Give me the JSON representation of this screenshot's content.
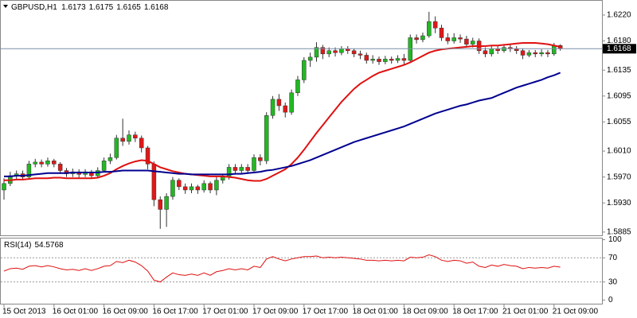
{
  "chart_data": [
    {
      "type": "candlestick",
      "title": "GBPUSD,H1",
      "categories": [
        "15 Oct 2013",
        null,
        null,
        null,
        null,
        null,
        null,
        null,
        "16 Oct 01:00",
        null,
        null,
        null,
        null,
        null,
        null,
        null,
        "16 Oct 09:00",
        null,
        null,
        null,
        null,
        null,
        null,
        null,
        "16 Oct 17:00",
        null,
        null,
        null,
        null,
        null,
        null,
        null,
        "17 Oct 01:00",
        null,
        null,
        null,
        null,
        null,
        null,
        null,
        "17 Oct 09:00",
        null,
        null,
        null,
        null,
        null,
        null,
        null,
        "17 Oct 17:00",
        null,
        null,
        null,
        null,
        null,
        null,
        null,
        "18 Oct 01:00",
        null,
        null,
        null,
        null,
        null,
        null,
        null,
        "18 Oct 09:00",
        null,
        null,
        null,
        null,
        null,
        null,
        null,
        "18 Oct 17:00",
        null,
        null,
        null,
        null,
        null,
        null,
        null,
        "21 Oct 01:00",
        null,
        null,
        null,
        null,
        null,
        null,
        null,
        "21 Oct 09:00",
        null
      ],
      "open": [
        1.595,
        1.596,
        1.5972,
        1.5975,
        1.597,
        1.599,
        1.5993,
        1.599,
        1.5995,
        1.599,
        1.598,
        1.5975,
        1.5978,
        1.5974,
        1.5978,
        1.5972,
        1.598,
        1.5995,
        1.6,
        1.603,
        1.6025,
        1.6035,
        1.603,
        1.6015,
        1.599,
        1.5935,
        1.592,
        1.594,
        1.5965,
        1.5955,
        1.595,
        1.5955,
        1.595,
        1.596,
        1.595,
        1.5965,
        1.597,
        1.5985,
        1.598,
        1.5985,
        1.598,
        1.6,
        1.5995,
        1.6065,
        1.609,
        1.608,
        1.607,
        1.61,
        1.612,
        1.615,
        1.6155,
        1.617,
        1.616,
        1.6165,
        1.6162,
        1.6168,
        1.6165,
        1.616,
        1.6158,
        1.615,
        1.6152,
        1.6148,
        1.6152,
        1.615,
        1.6153,
        1.615,
        1.6185,
        1.6182,
        1.6188,
        1.621,
        1.62,
        1.6185,
        1.618,
        1.6185,
        1.6183,
        1.6175,
        1.618,
        1.6165,
        1.616,
        1.6168,
        1.6165,
        1.617,
        1.6168,
        1.6165,
        1.6158,
        1.6162,
        1.616,
        1.6162,
        1.616,
        1.6173
      ],
      "high": [
        1.5968,
        1.5978,
        1.598,
        1.598,
        1.5995,
        1.5998,
        1.5997,
        1.6,
        1.5998,
        1.5993,
        1.5984,
        1.5983,
        1.5982,
        1.5982,
        1.5981,
        1.5985,
        1.6,
        1.6006,
        1.6035,
        1.606,
        1.6042,
        1.604,
        1.6034,
        1.6018,
        1.5994,
        1.594,
        1.5945,
        1.597,
        1.5968,
        1.596,
        1.596,
        1.5958,
        1.5965,
        1.5963,
        1.597,
        1.5975,
        1.599,
        1.599,
        1.599,
        1.599,
        1.6005,
        1.6005,
        1.607,
        1.6095,
        1.6098,
        1.6085,
        1.6105,
        1.6126,
        1.6155,
        1.6162,
        1.6178,
        1.6174,
        1.617,
        1.617,
        1.6172,
        1.6172,
        1.6168,
        1.6165,
        1.6162,
        1.6158,
        1.6156,
        1.6157,
        1.6156,
        1.6158,
        1.616,
        1.619,
        1.619,
        1.6193,
        1.6225,
        1.6218,
        1.6205,
        1.6192,
        1.6192,
        1.619,
        1.6188,
        1.6185,
        1.6184,
        1.617,
        1.6173,
        1.6172,
        1.6175,
        1.6174,
        1.6172,
        1.6168,
        1.6166,
        1.6166,
        1.6167,
        1.6166,
        1.6177,
        1.6175
      ],
      "low": [
        1.5935,
        1.5956,
        1.5966,
        1.5965,
        1.5967,
        1.5985,
        1.5985,
        1.5986,
        1.5985,
        1.5975,
        1.597,
        1.597,
        1.5969,
        1.597,
        1.5967,
        1.5968,
        1.5977,
        1.599,
        1.5997,
        1.6018,
        1.602,
        1.6024,
        1.6008,
        1.5982,
        1.5925,
        1.589,
        1.5893,
        1.5935,
        1.595,
        1.5944,
        1.5945,
        1.5944,
        1.5946,
        1.5945,
        1.5942,
        1.596,
        1.5966,
        1.5975,
        1.5976,
        1.5975,
        1.5977,
        1.5988,
        1.599,
        1.606,
        1.6072,
        1.6062,
        1.6066,
        1.6095,
        1.6115,
        1.614,
        1.6148,
        1.6152,
        1.6155,
        1.6156,
        1.6158,
        1.616,
        1.6155,
        1.6152,
        1.6145,
        1.6145,
        1.6143,
        1.6144,
        1.6145,
        1.6146,
        1.6144,
        1.6148,
        1.6176,
        1.6178,
        1.6185,
        1.6192,
        1.618,
        1.6175,
        1.6176,
        1.6177,
        1.617,
        1.617,
        1.616,
        1.6155,
        1.6156,
        1.616,
        1.6162,
        1.6163,
        1.616,
        1.6152,
        1.6155,
        1.6155,
        1.6156,
        1.6155,
        1.6157,
        1.6165
      ],
      "close": [
        1.596,
        1.5972,
        1.5975,
        1.597,
        1.599,
        1.5993,
        1.599,
        1.5995,
        1.599,
        1.598,
        1.5975,
        1.5978,
        1.5974,
        1.5978,
        1.5972,
        1.598,
        1.5995,
        1.6,
        1.603,
        1.6025,
        1.6035,
        1.603,
        1.6015,
        1.599,
        1.5935,
        1.592,
        1.594,
        1.5965,
        1.5955,
        1.595,
        1.5955,
        1.595,
        1.596,
        1.595,
        1.5965,
        1.597,
        1.5985,
        1.598,
        1.5985,
        1.598,
        1.6,
        1.5995,
        1.6065,
        1.609,
        1.608,
        1.607,
        1.61,
        1.612,
        1.615,
        1.6155,
        1.617,
        1.616,
        1.6165,
        1.6162,
        1.6168,
        1.6165,
        1.616,
        1.6158,
        1.615,
        1.6152,
        1.6148,
        1.6152,
        1.615,
        1.6153,
        1.615,
        1.6185,
        1.6182,
        1.6188,
        1.621,
        1.62,
        1.6185,
        1.618,
        1.6185,
        1.6183,
        1.6175,
        1.618,
        1.6165,
        1.616,
        1.6168,
        1.6165,
        1.617,
        1.6168,
        1.6165,
        1.6158,
        1.6162,
        1.616,
        1.6162,
        1.616,
        1.6173,
        1.6168
      ],
      "up_color": "#22b822",
      "down_color": "#e01818",
      "series": [
        {
          "color": "#e01010",
          "values": [
            1.5965,
            1.5965,
            1.5966,
            1.5966,
            1.5967,
            1.5968,
            1.5968,
            1.5968,
            1.5969,
            1.5969,
            1.5968,
            1.5968,
            1.5968,
            1.5968,
            1.5968,
            1.5969,
            1.5972,
            1.5976,
            1.5982,
            1.5987,
            1.5991,
            1.5994,
            1.5996,
            1.5995,
            1.599,
            1.5985,
            1.5982,
            1.5979,
            1.5977,
            1.5975,
            1.5974,
            1.5973,
            1.5972,
            1.5971,
            1.5971,
            1.5971,
            1.597,
            1.5969,
            1.5967,
            1.5965,
            1.5964,
            1.5964,
            1.5967,
            1.5972,
            1.5977,
            1.5982,
            1.599,
            1.6,
            1.6012,
            1.6025,
            1.6038,
            1.605,
            1.6062,
            1.6074,
            1.6086,
            1.6096,
            1.6106,
            1.6114,
            1.612,
            1.6126,
            1.6131,
            1.6134,
            1.6137,
            1.614,
            1.6143,
            1.6147,
            1.6152,
            1.6157,
            1.6162,
            1.6165,
            1.6167,
            1.6168,
            1.6169,
            1.617,
            1.6171,
            1.6172,
            1.6172,
            1.6172,
            1.6173,
            1.6173,
            1.6174,
            1.6175,
            1.6176,
            1.6177,
            1.6177,
            1.6177,
            1.6176,
            1.6175,
            1.6173,
            1.6171
          ]
        },
        {
          "color": "#000090",
          "values": [
            1.5971,
            1.5971,
            1.5972,
            1.5972,
            1.5973,
            1.5974,
            1.5975,
            1.5976,
            1.5976,
            1.5976,
            1.5976,
            1.5977,
            1.5977,
            1.5977,
            1.5977,
            1.5977,
            1.5978,
            1.5978,
            1.5979,
            1.598,
            1.598,
            1.598,
            1.598,
            1.598,
            1.5979,
            1.5978,
            1.5977,
            1.5976,
            1.5975,
            1.5975,
            1.5974,
            1.5974,
            1.5974,
            1.5974,
            1.5974,
            1.5974,
            1.5974,
            1.5975,
            1.5975,
            1.5976,
            1.5977,
            1.5978,
            1.598,
            1.5981,
            1.5983,
            1.5985,
            1.5987,
            1.599,
            1.5993,
            1.5996,
            1.6,
            1.6004,
            1.6008,
            1.6012,
            1.6016,
            1.602,
            1.6024,
            1.6027,
            1.603,
            1.6033,
            1.6036,
            1.6039,
            1.6042,
            1.6045,
            1.6048,
            1.6052,
            1.6056,
            1.606,
            1.6064,
            1.6068,
            1.6071,
            1.6074,
            1.6077,
            1.608,
            1.6082,
            1.6085,
            1.6088,
            1.609,
            1.6092,
            1.6096,
            1.61,
            1.6104,
            1.6108,
            1.6111,
            1.6114,
            1.6117,
            1.612,
            1.6124,
            1.6127,
            1.6131
          ]
        }
      ],
      "ylim": [
        1.588,
        1.6242
      ],
      "yticks": [
        {
          "value": 1.622,
          "label": "1.6220"
        },
        {
          "value": 1.618,
          "label": "1.6180"
        },
        {
          "value": 1.6135,
          "label": "1.6135"
        },
        {
          "value": 1.6095,
          "label": "1.6095"
        },
        {
          "value": 1.6055,
          "label": "1.6055"
        },
        {
          "value": 1.601,
          "label": "1.6010"
        },
        {
          "value": 1.597,
          "label": "1.5970"
        },
        {
          "value": 1.593,
          "label": "1.5930"
        },
        {
          "value": 1.5885,
          "label": "1.5885"
        }
      ],
      "grid": false
    },
    {
      "type": "line",
      "title": "RSI(14)",
      "series": [
        {
          "color": "#e01010",
          "values": [
            48,
            52,
            53,
            51,
            56,
            57,
            55,
            57,
            55,
            52,
            50,
            51,
            49,
            52,
            49,
            52,
            56,
            57,
            64,
            62,
            66,
            63,
            57,
            48,
            33,
            30,
            38,
            45,
            42,
            41,
            43,
            41,
            45,
            41,
            47,
            49,
            52,
            50,
            52,
            50,
            56,
            54,
            68,
            72,
            68,
            65,
            68,
            70,
            72,
            72,
            73,
            70,
            71,
            70,
            71,
            70,
            69,
            68,
            66,
            66,
            65,
            66,
            65,
            66,
            65,
            71,
            70,
            71,
            75,
            72,
            66,
            64,
            66,
            65,
            61,
            63,
            56,
            54,
            58,
            56,
            59,
            57,
            56,
            52,
            54,
            53,
            54,
            53,
            56,
            54.5768
          ]
        }
      ],
      "ylim": [
        -6,
        102
      ],
      "yticks": [
        100,
        70,
        30,
        0
      ],
      "levels": [
        70,
        30
      ]
    }
  ]
}
